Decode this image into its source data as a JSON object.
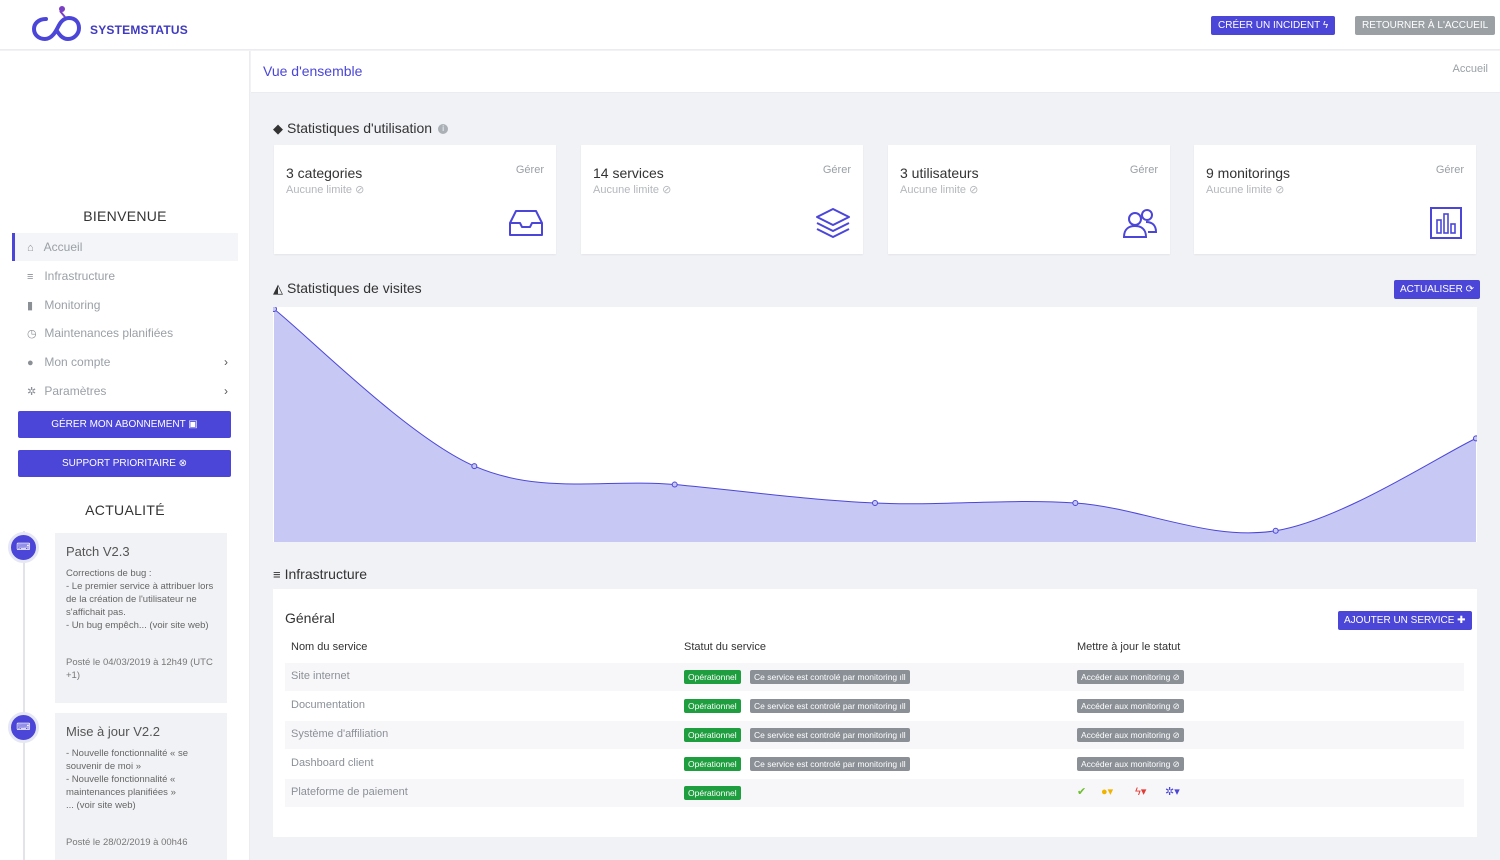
{
  "header": {
    "brand": "SYSTEMSTATUS",
    "create_incident": "CRÉER UN INCIDENT ϟ",
    "back_home": "RETOURNER À L'ACCUEIL"
  },
  "sidebar": {
    "welcome": "BIENVENUE",
    "items": [
      {
        "label": "Accueil",
        "icon": "home-icon",
        "glyph": "⌂"
      },
      {
        "label": "Infrastructure",
        "icon": "server-icon",
        "glyph": "≡"
      },
      {
        "label": "Monitoring",
        "icon": "signal-icon",
        "glyph": "▮"
      },
      {
        "label": "Maintenances planifiées",
        "icon": "clock-icon",
        "glyph": "◷"
      },
      {
        "label": "Mon compte",
        "icon": "user-circle-icon",
        "glyph": "●"
      },
      {
        "label": "Paramètres",
        "icon": "gears-icon",
        "glyph": "✲"
      }
    ],
    "manage_subscription": "GÉRER MON ABONNEMENT ▣",
    "priority_support": "SUPPORT PRIORITAIRE ⊗",
    "news_title": "ACTUALITÉ",
    "news": [
      {
        "title": "Patch V2.3",
        "body": "Corrections de bug :\n- Le premier service à attribuer lors de la création de l'utilisateur ne s'affichait pas.\n- Un bug empêch... (voir site web)",
        "posted": "Posté le 04/03/2019 à 12h49 (UTC +1)"
      },
      {
        "title": "Mise à jour V2.2",
        "body": "- Nouvelle fonctionnalité « se souvenir de moi »\n- Nouvelle fonctionnalité « maintenances planifiées »\n... (voir site web)",
        "posted": "Posté le 28/02/2019 à 00h46"
      }
    ]
  },
  "subheader": {
    "title": "Vue d'ensemble",
    "breadcrumb": "Accueil"
  },
  "usage": {
    "title": "Statistiques d'utilisation",
    "info": "i",
    "cards": [
      {
        "count": "3 categories",
        "limit": "Aucune limite ⊘",
        "manage": "Gérer",
        "icon": "inbox-icon"
      },
      {
        "count": "14 services",
        "limit": "Aucune limite ⊘",
        "manage": "Gérer",
        "icon": "layers-icon"
      },
      {
        "count": "3 utilisateurs",
        "limit": "Aucune limite ⊘",
        "manage": "Gérer",
        "icon": "users-icon"
      },
      {
        "count": "9 monitorings",
        "limit": "Aucune limite ⊘",
        "manage": "Gérer",
        "icon": "bar-chart-icon"
      }
    ]
  },
  "visits": {
    "title": "Statistiques de visites",
    "refresh": "ACTUALISER ⟳"
  },
  "chart_data": {
    "type": "area",
    "x": [
      0,
      1,
      2,
      3,
      4,
      5,
      6
    ],
    "values": [
      100,
      32,
      24,
      16,
      16,
      4,
      44
    ],
    "ylim": [
      0,
      100
    ],
    "color": "#4b46d8",
    "fill": "#c7c8f3"
  },
  "infrastructure": {
    "title": "Infrastructure",
    "group": "Général",
    "add_service": "AJOUTER UN SERVICE ✚",
    "columns": [
      "Nom du service",
      "Statut du service",
      "Mettre à jour le statut"
    ],
    "rows": [
      {
        "name": "Site internet",
        "status": "Opérationnel",
        "monitor": "Ce service est controlé par monitoring ıll",
        "action": "Accéder aux monitoring ⊘"
      },
      {
        "name": "Documentation",
        "status": "Opérationnel",
        "monitor": "Ce service est controlé par monitoring ıll",
        "action": "Accéder aux monitoring ⊘"
      },
      {
        "name": "Système d'affiliation",
        "status": "Opérationnel",
        "monitor": "Ce service est controlé par monitoring ıll",
        "action": "Accéder aux monitoring ⊘"
      },
      {
        "name": "Dashboard client",
        "status": "Opérationnel",
        "monitor": "Ce service est controlé par monitoring ıll",
        "action": "Accéder aux monitoring ⊘"
      },
      {
        "name": "Plateforme de paiement",
        "status": "Opérationnel"
      }
    ],
    "tools": {
      "check": "✔",
      "warn": "●▾",
      "bolt": "ϟ▾",
      "gears": "✲▾"
    },
    "colors": {
      "ok": "#1e9e3e",
      "accent": "#4b46d8",
      "warning": "#f0b400",
      "danger": "#e53935"
    }
  }
}
